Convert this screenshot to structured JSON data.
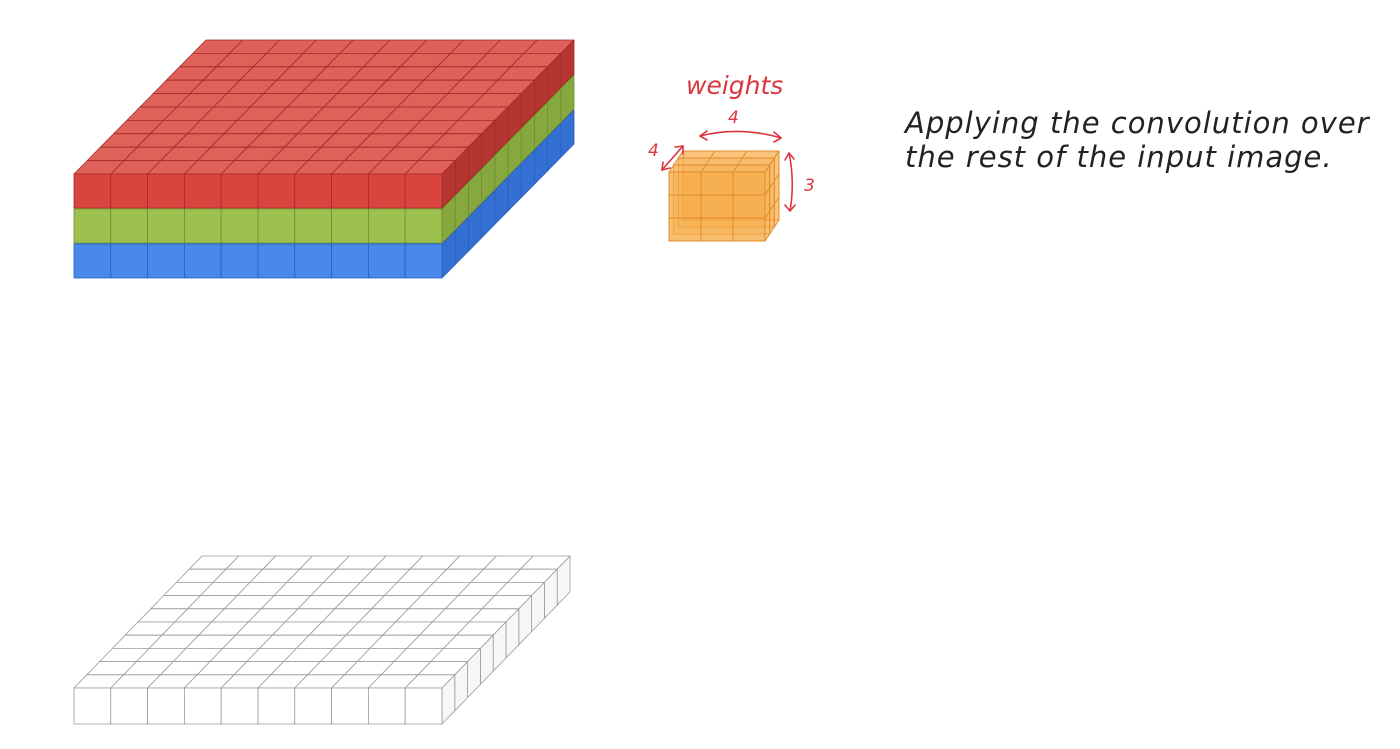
{
  "input_volume": {
    "grid_cols": 10,
    "grid_rows": 10,
    "channels": [
      {
        "top": "#e0605a",
        "front": "#d8453f",
        "side": "#b53631",
        "edge": "#a02c27"
      },
      {
        "top": "#acd160",
        "front": "#9dc14f",
        "side": "#86a83e",
        "edge": "#6f8d31"
      },
      {
        "top": "#5c97f2",
        "front": "#4a88ee",
        "side": "#346fd3",
        "edge": "#2a5fbd"
      }
    ]
  },
  "kernel": {
    "label": "weights",
    "width_label": "4",
    "depth_label": "4",
    "height_label": "3",
    "grid": 3,
    "fill": "#f6a83f",
    "stroke": "#e38a2a",
    "annotation_color": "#d9363e"
  },
  "output_grid": {
    "grid_cols": 10,
    "grid_rows": 10,
    "fill_top": "#ffffff",
    "fill_front": "#ffffff",
    "fill_side": "#f7f7f7",
    "stroke": "#9a9a9a"
  },
  "caption": {
    "line1": "Applying the convolution over",
    "line2": "the rest of the input image."
  }
}
